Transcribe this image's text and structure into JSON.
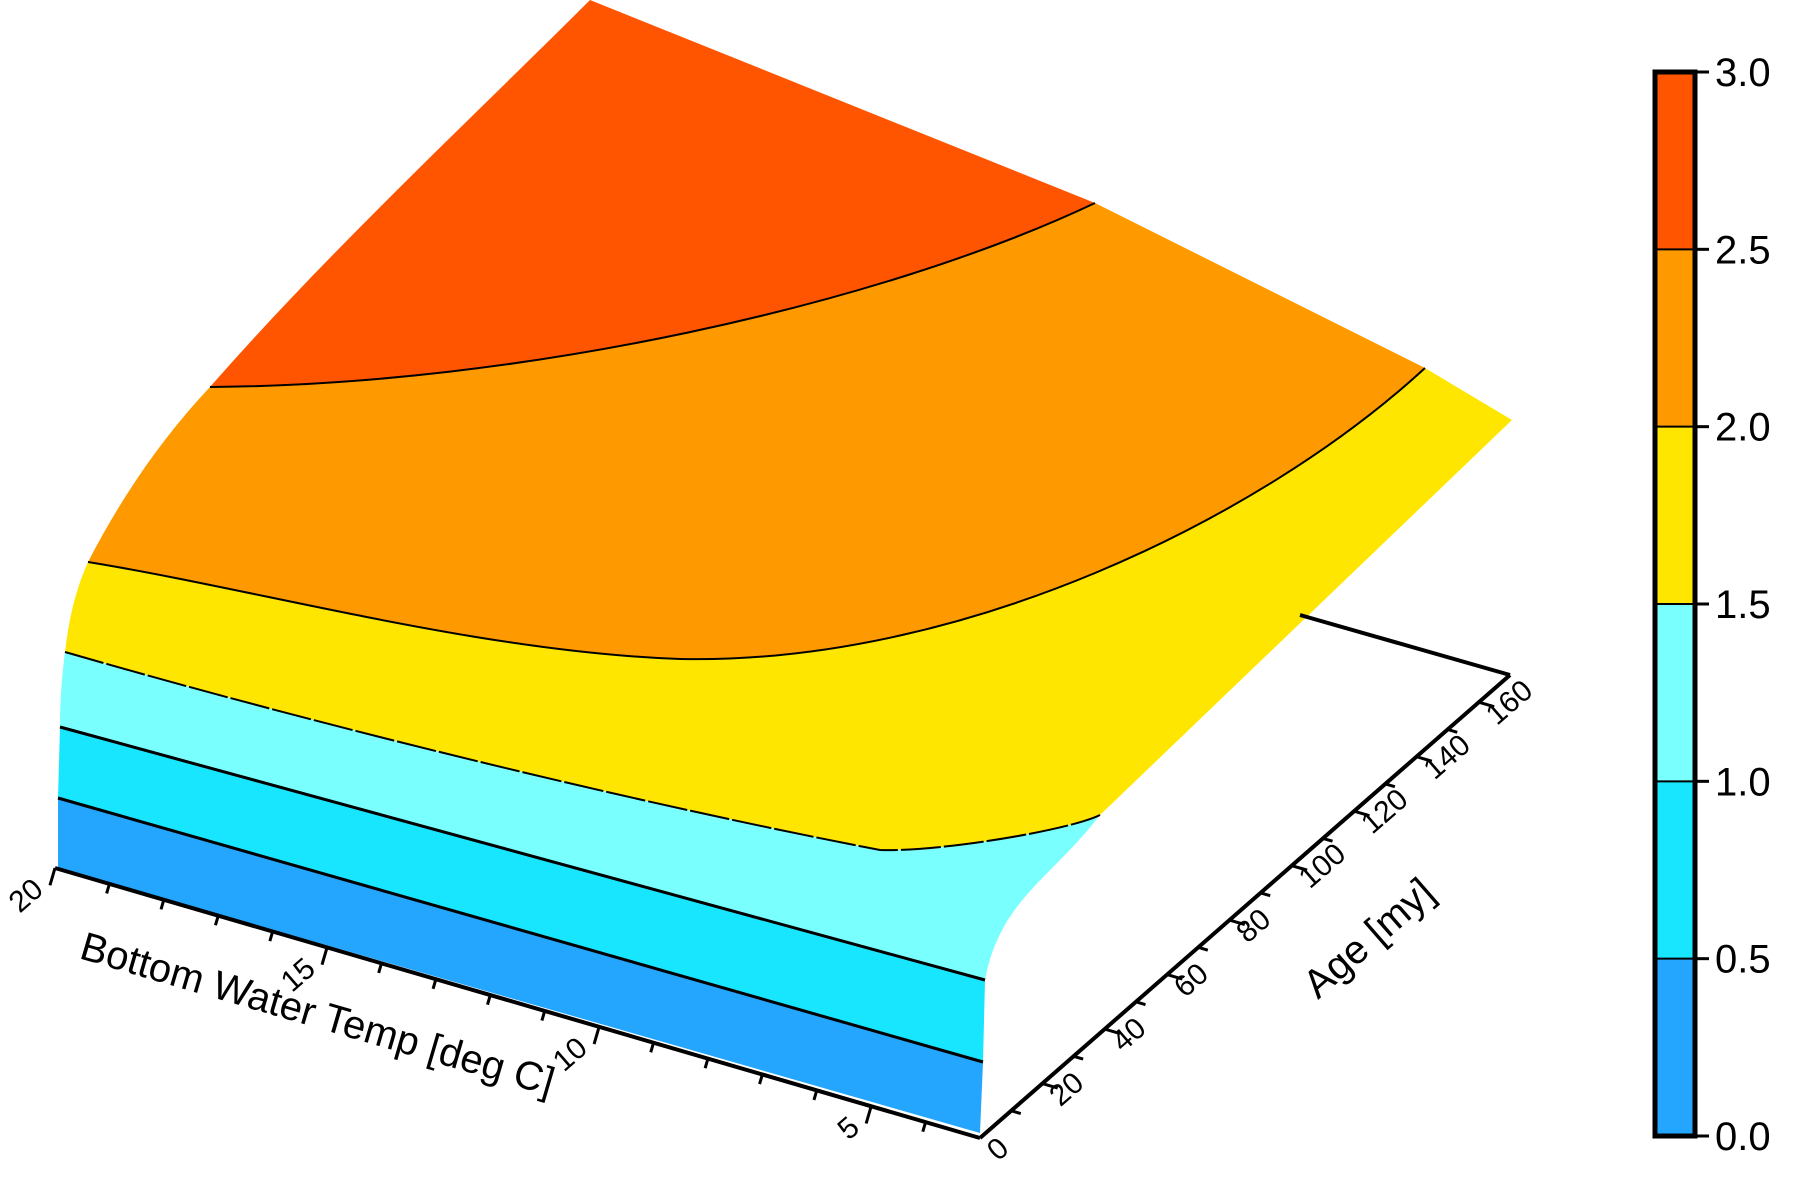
{
  "chart_data": {
    "type": "surface3d",
    "title": "",
    "x_axis": {
      "label": "Bottom Water Temp [deg C]",
      "range": [
        3,
        20
      ],
      "ticks": [
        "5",
        "10",
        "15",
        "20"
      ]
    },
    "y_axis": {
      "label": "Age [my]",
      "range": [
        0,
        170
      ],
      "ticks": [
        "0",
        "20",
        "40",
        "60",
        "80",
        "100",
        "120",
        "140",
        "160"
      ]
    },
    "z_axis": {
      "range": [
        0,
        3
      ]
    },
    "contour_levels": [
      0.5,
      1.0,
      1.5,
      2.0,
      2.5
    ],
    "colorbar": {
      "labels": [
        "0.0",
        "0.5",
        "1.0",
        "1.5",
        "2.0",
        "2.5",
        "3.0"
      ],
      "bands": [
        {
          "from": 0.0,
          "to": 0.5,
          "color": "#24a6ff"
        },
        {
          "from": 0.5,
          "to": 1.0,
          "color": "#18e6ff"
        },
        {
          "from": 1.0,
          "to": 1.5,
          "color": "#7affff"
        },
        {
          "from": 1.5,
          "to": 2.0,
          "color": "#ffe600"
        },
        {
          "from": 2.0,
          "to": 2.5,
          "color": "#ff9900"
        },
        {
          "from": 2.5,
          "to": 3.0,
          "color": "#ff5500"
        }
      ]
    }
  }
}
